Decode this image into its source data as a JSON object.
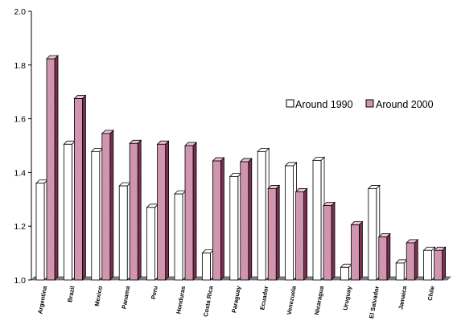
{
  "chart_data": {
    "type": "bar",
    "categories": [
      "Argentina",
      "Brazil",
      "Mexico",
      "Panama",
      "Peru",
      "Honduras",
      "Costa Rica",
      "Paraguay",
      "Ecuador",
      "Venezuela",
      "Nicaragua",
      "Uruguay",
      "El Salvador",
      "Jamaica",
      "Chile"
    ],
    "series": [
      {
        "name": "Around 1990",
        "values": [
          1.36,
          1.505,
          1.478,
          1.35,
          1.27,
          1.32,
          1.1,
          1.385,
          1.478,
          1.425,
          1.445,
          1.047,
          1.34,
          1.063,
          1.11
        ]
      },
      {
        "name": "Around 2000",
        "values": [
          1.823,
          1.675,
          1.545,
          1.508,
          1.505,
          1.5,
          1.443,
          1.44,
          1.34,
          1.328,
          1.277,
          1.205,
          1.16,
          1.138,
          1.11
        ]
      }
    ],
    "ylim": [
      1.0,
      2.0
    ],
    "yticks": [
      "1.0",
      "1.2",
      "1.4",
      "1.6",
      "1.8",
      "2.0"
    ],
    "title": "",
    "xlabel": "",
    "ylabel": "",
    "legend_position": "right",
    "colors": {
      "series_1_fill": "#ffffff",
      "series_2_fill": "#d9a0b9",
      "series_2_side": "#7a2f50",
      "edge": "#000000",
      "floor": "#808080"
    }
  }
}
